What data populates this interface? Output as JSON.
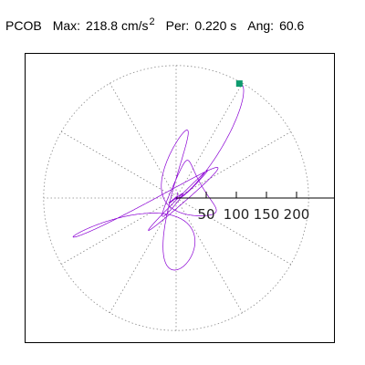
{
  "header": {
    "station": "PCOB",
    "max_label": "Max:",
    "max_value": "218.8 cm/s",
    "max_exp": "2",
    "per_label": "Per:",
    "per_value": "0.220 s",
    "ang_label": "Ang:",
    "ang_value": "60.6"
  },
  "chart_data": {
    "type": "scatter",
    "subtype": "polar-particle-motion",
    "title": "",
    "xlabel": "",
    "ylabel": "",
    "radial_ticks": [
      50,
      100,
      150,
      200
    ],
    "radial_tick_labels": [
      "50",
      "100",
      "150",
      "200"
    ],
    "rmax": 220,
    "grid": "dotted-polar",
    "trace_color": "#8a00d4",
    "marker_color": "#0e9a6e",
    "end_marker": {
      "x": 105,
      "y": 190
    },
    "max_amplitude": 218.8,
    "dominant_angle_deg": 60.6
  }
}
